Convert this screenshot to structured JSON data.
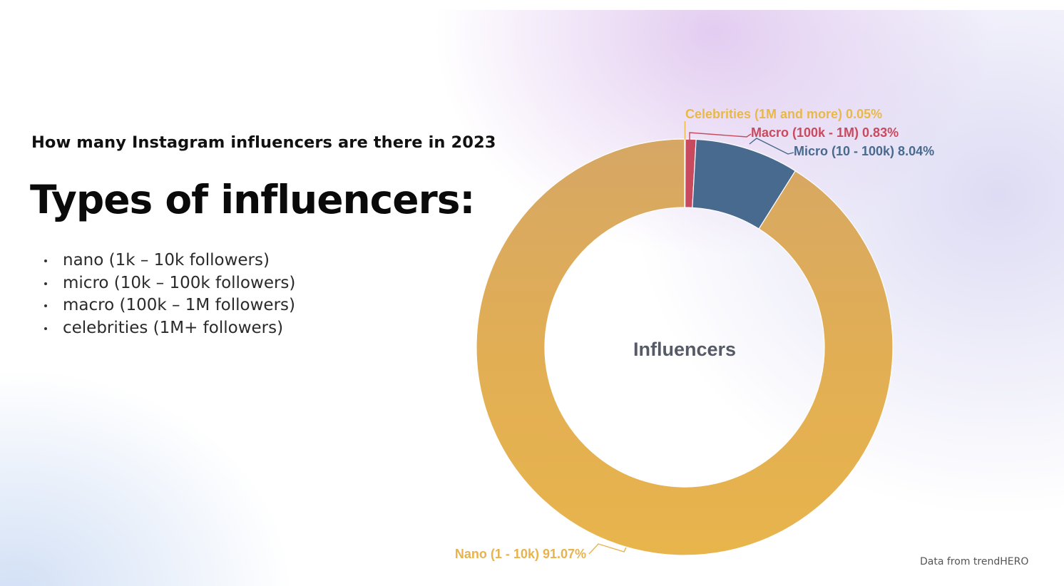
{
  "slide": {
    "subtitle": "How many Instagram influencers are there in 2023",
    "title": "Types of influencers:",
    "bullets": [
      "nano (1k – 10k followers)",
      "micro (10k – 100k followers)",
      "macro (100k – 1M followers)",
      "celebrities (1M+ followers)"
    ],
    "footer": "Data from trendHERO"
  },
  "chart_data": {
    "type": "pie",
    "donut": true,
    "center_label": "Influencers",
    "slices": [
      {
        "label": "Celebrities (1M and more) 0.05%",
        "value": 0.05,
        "color": "#E8B94A"
      },
      {
        "label": "Macro (100k - 1M) 0.83%",
        "value": 0.83,
        "color": "#C94A5E"
      },
      {
        "label": "Micro (10 - 100k) 8.04%",
        "value": 8.04,
        "color": "#476A8E"
      },
      {
        "label": "Nano (1 - 10k) 91.07%",
        "value": 91.07,
        "color": "#E8B34E"
      }
    ]
  }
}
